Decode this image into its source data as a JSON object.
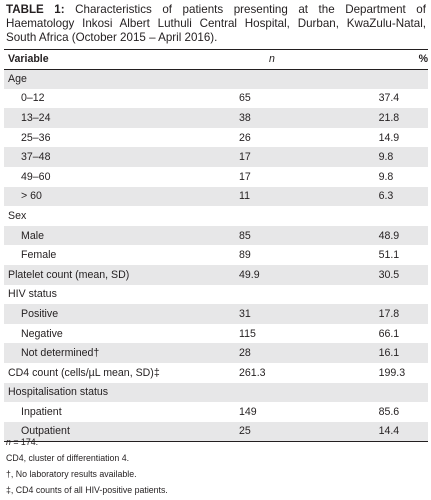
{
  "caption": {
    "label": "TABLE 1:",
    "text": "Characteristics of patients presenting at the Department of Haematology Inkosi Albert Luthuli Central Hospital, Durban, KwaZulu-Natal, South Africa (October 2015 – April 2016)."
  },
  "table": {
    "headers": [
      "Variable",
      "n",
      "%"
    ],
    "rows": [
      {
        "label": "Age",
        "n": "",
        "pct": "",
        "kind": "group",
        "shade": true
      },
      {
        "label": "0–12",
        "n": "65",
        "pct": "37.4",
        "kind": "sub",
        "shade": false
      },
      {
        "label": "13–24",
        "n": "38",
        "pct": "21.8",
        "kind": "sub",
        "shade": true
      },
      {
        "label": "25–36",
        "n": "26",
        "pct": "14.9",
        "kind": "sub",
        "shade": false
      },
      {
        "label": "37–48",
        "n": "17",
        "pct": "9.8",
        "kind": "sub",
        "shade": true
      },
      {
        "label": "49–60",
        "n": "17",
        "pct": "9.8",
        "kind": "sub",
        "shade": false
      },
      {
        "label": "> 60",
        "n": "11",
        "pct": "6.3",
        "kind": "sub",
        "shade": true
      },
      {
        "label": "Sex",
        "n": "",
        "pct": "",
        "kind": "group",
        "shade": false
      },
      {
        "label": "Male",
        "n": "85",
        "pct": "48.9",
        "kind": "sub",
        "shade": true
      },
      {
        "label": "Female",
        "n": "89",
        "pct": "51.1",
        "kind": "sub",
        "shade": false
      },
      {
        "label": "Platelet count (mean, SD)",
        "n": "49.9",
        "pct": "30.5",
        "kind": "group",
        "shade": true
      },
      {
        "label": "HIV status",
        "n": "",
        "pct": "",
        "kind": "group",
        "shade": false
      },
      {
        "label": "Positive",
        "n": "31",
        "pct": "17.8",
        "kind": "sub",
        "shade": true
      },
      {
        "label": "Negative",
        "n": "115",
        "pct": "66.1",
        "kind": "sub",
        "shade": false
      },
      {
        "label": "Not determined†",
        "n": "28",
        "pct": "16.1",
        "kind": "sub",
        "shade": true
      },
      {
        "label": "CD4 count (cells/µL mean, SD)‡",
        "n": "261.3",
        "pct": "199.3",
        "kind": "group",
        "shade": false
      },
      {
        "label": "Hospitalisation status",
        "n": "",
        "pct": "",
        "kind": "group",
        "shade": true
      },
      {
        "label": "Inpatient",
        "n": "149",
        "pct": "85.6",
        "kind": "sub",
        "shade": false
      },
      {
        "label": "Outpatient",
        "n": "25",
        "pct": "14.4",
        "kind": "sub",
        "shade": true
      }
    ]
  },
  "notes": {
    "n_prefix": "n",
    "n_rest": " = 174.",
    "cd4": "CD4, cluster of differentiation 4.",
    "dagger": "†, No laboratory results available.",
    "ddagger": "‡, CD4 counts of all HIV-positive patients."
  }
}
